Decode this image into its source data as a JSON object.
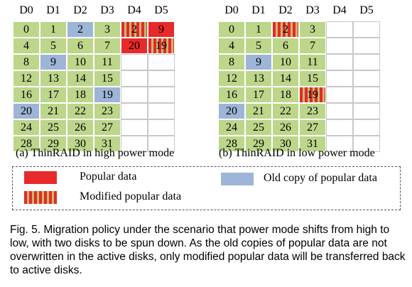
{
  "grids": [
    {
      "id": "high",
      "headers": [
        "D0",
        "D1",
        "D2",
        "D3",
        "D4",
        "D5"
      ],
      "caption": "(a) ThinRAID in high power mode",
      "rows": [
        [
          {
            "v": "0",
            "t": "green"
          },
          {
            "v": "1",
            "t": "green"
          },
          {
            "v": "2",
            "t": "blue"
          },
          {
            "v": "3",
            "t": "green"
          },
          {
            "v": "2",
            "t": "stripe"
          },
          {
            "v": "9",
            "t": "red"
          }
        ],
        [
          {
            "v": "4",
            "t": "green"
          },
          {
            "v": "5",
            "t": "green"
          },
          {
            "v": "6",
            "t": "green"
          },
          {
            "v": "7",
            "t": "green"
          },
          {
            "v": "20",
            "t": "red"
          },
          {
            "v": "19",
            "t": "stripe"
          }
        ],
        [
          {
            "v": "8",
            "t": "green"
          },
          {
            "v": "9",
            "t": "blue"
          },
          {
            "v": "10",
            "t": "green"
          },
          {
            "v": "11",
            "t": "green"
          },
          {
            "v": "",
            "t": "empty"
          },
          {
            "v": "",
            "t": "empty"
          }
        ],
        [
          {
            "v": "12",
            "t": "green"
          },
          {
            "v": "13",
            "t": "green"
          },
          {
            "v": "14",
            "t": "green"
          },
          {
            "v": "15",
            "t": "green"
          },
          {
            "v": "",
            "t": "empty"
          },
          {
            "v": "",
            "t": "empty"
          }
        ],
        [
          {
            "v": "16",
            "t": "green"
          },
          {
            "v": "17",
            "t": "green"
          },
          {
            "v": "18",
            "t": "green"
          },
          {
            "v": "19",
            "t": "blue"
          },
          {
            "v": "",
            "t": "empty"
          },
          {
            "v": "",
            "t": "empty"
          }
        ],
        [
          {
            "v": "20",
            "t": "blue"
          },
          {
            "v": "21",
            "t": "green"
          },
          {
            "v": "22",
            "t": "green"
          },
          {
            "v": "23",
            "t": "green"
          },
          {
            "v": "",
            "t": "empty"
          },
          {
            "v": "",
            "t": "empty"
          }
        ],
        [
          {
            "v": "24",
            "t": "green"
          },
          {
            "v": "25",
            "t": "green"
          },
          {
            "v": "26",
            "t": "green"
          },
          {
            "v": "27",
            "t": "green"
          },
          {
            "v": "",
            "t": "empty"
          },
          {
            "v": "",
            "t": "empty"
          }
        ],
        [
          {
            "v": "28",
            "t": "green"
          },
          {
            "v": "29",
            "t": "green"
          },
          {
            "v": "30",
            "t": "green"
          },
          {
            "v": "31",
            "t": "green"
          },
          {
            "v": "",
            "t": "empty"
          },
          {
            "v": "",
            "t": "empty"
          }
        ]
      ]
    },
    {
      "id": "low",
      "headers": [
        "D0",
        "D1",
        "D2",
        "D3",
        "D4",
        "D5"
      ],
      "caption": "(b) ThinRAID in low power mode",
      "rows": [
        [
          {
            "v": "0",
            "t": "green"
          },
          {
            "v": "1",
            "t": "green"
          },
          {
            "v": "2",
            "t": "stripe"
          },
          {
            "v": "3",
            "t": "green"
          },
          {
            "v": "",
            "t": "empty"
          },
          {
            "v": "",
            "t": "empty"
          }
        ],
        [
          {
            "v": "4",
            "t": "green"
          },
          {
            "v": "5",
            "t": "green"
          },
          {
            "v": "6",
            "t": "green"
          },
          {
            "v": "7",
            "t": "green"
          },
          {
            "v": "",
            "t": "empty"
          },
          {
            "v": "",
            "t": "empty"
          }
        ],
        [
          {
            "v": "8",
            "t": "green"
          },
          {
            "v": "9",
            "t": "blue"
          },
          {
            "v": "10",
            "t": "green"
          },
          {
            "v": "11",
            "t": "green"
          },
          {
            "v": "",
            "t": "empty"
          },
          {
            "v": "",
            "t": "empty"
          }
        ],
        [
          {
            "v": "12",
            "t": "green"
          },
          {
            "v": "13",
            "t": "green"
          },
          {
            "v": "14",
            "t": "green"
          },
          {
            "v": "15",
            "t": "green"
          },
          {
            "v": "",
            "t": "empty"
          },
          {
            "v": "",
            "t": "empty"
          }
        ],
        [
          {
            "v": "16",
            "t": "green"
          },
          {
            "v": "17",
            "t": "green"
          },
          {
            "v": "18",
            "t": "green"
          },
          {
            "v": "19",
            "t": "stripe"
          },
          {
            "v": "",
            "t": "empty"
          },
          {
            "v": "",
            "t": "empty"
          }
        ],
        [
          {
            "v": "20",
            "t": "blue"
          },
          {
            "v": "21",
            "t": "green"
          },
          {
            "v": "22",
            "t": "green"
          },
          {
            "v": "23",
            "t": "green"
          },
          {
            "v": "",
            "t": "empty"
          },
          {
            "v": "",
            "t": "empty"
          }
        ],
        [
          {
            "v": "24",
            "t": "green"
          },
          {
            "v": "25",
            "t": "green"
          },
          {
            "v": "26",
            "t": "green"
          },
          {
            "v": "27",
            "t": "green"
          },
          {
            "v": "",
            "t": "empty"
          },
          {
            "v": "",
            "t": "empty"
          }
        ],
        [
          {
            "v": "28",
            "t": "green"
          },
          {
            "v": "29",
            "t": "green"
          },
          {
            "v": "30",
            "t": "green"
          },
          {
            "v": "31",
            "t": "green"
          },
          {
            "v": "",
            "t": "empty"
          },
          {
            "v": "",
            "t": "empty"
          }
        ]
      ]
    }
  ],
  "colors": {
    "green": "#bcd68a",
    "blue": "#9db5d6",
    "red": "#e82a2a",
    "empty": "#ffffff"
  },
  "legend": {
    "popular": "Popular data",
    "modified": "Modified popular data",
    "old_copy": "Old copy of popular data"
  },
  "figure_caption": "Fig. 5. Migration policy under the scenario that power mode shifts from high to low, with two disks to be spun down. As the old copies of popular data are not overwritten in the active disks, only modified popular data will be transferred back to active disks."
}
